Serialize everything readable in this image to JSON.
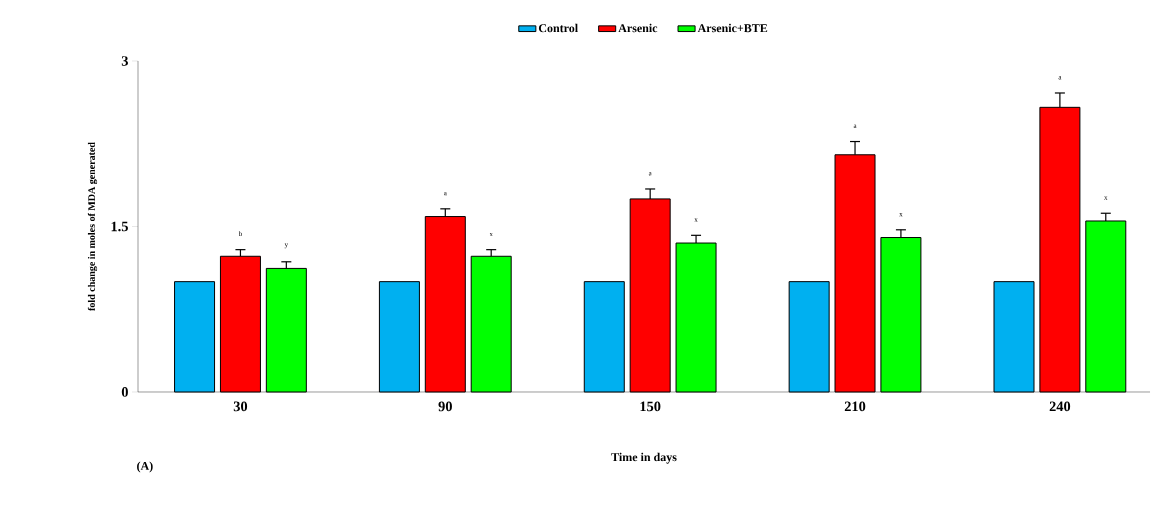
{
  "chart_data": {
    "type": "bar",
    "xlabel": "Time in days",
    "ylabel": "fold change in moles of MDA  generated",
    "categories": [
      "30",
      "90",
      "150",
      "210",
      "240"
    ],
    "series": [
      {
        "name": "Control",
        "color": "#00b0f0",
        "values": [
          1.0,
          1.0,
          1.0,
          1.0,
          1.0
        ]
      },
      {
        "name": "Arsenic",
        "color": "#ff0000",
        "values": [
          1.23,
          1.59,
          1.75,
          2.15,
          2.58
        ],
        "errors": [
          0.06,
          0.07,
          0.09,
          0.12,
          0.13
        ]
      },
      {
        "name": "Arsenic+BTE",
        "color": "#00ff00",
        "values": [
          1.12,
          1.23,
          1.35,
          1.4,
          1.55
        ],
        "errors": [
          0.06,
          0.06,
          0.07,
          0.07,
          0.07
        ]
      }
    ],
    "ylim": [
      0,
      3
    ],
    "yticks": [
      0,
      1.5,
      3
    ],
    "legend": "top",
    "grid": false,
    "annotations": [
      "b",
      "y",
      "a",
      "x",
      "a",
      "x",
      "a",
      "x",
      "a",
      "x",
      "(A)"
    ]
  }
}
